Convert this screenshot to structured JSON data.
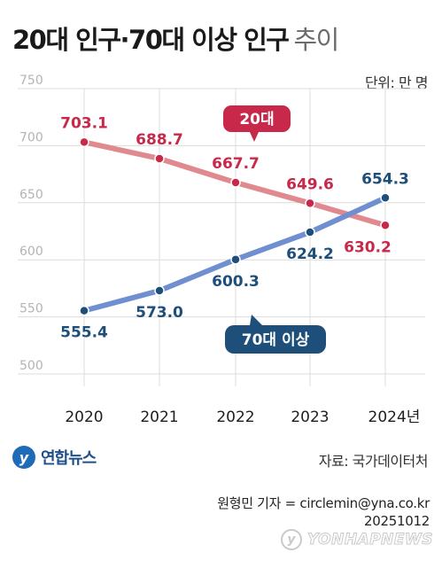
{
  "header": {
    "title": "20대 인구·70대 이상 인구",
    "subtitle": "추이",
    "unit": "단위: 만 명"
  },
  "chart_data": {
    "type": "line",
    "categories": [
      "2020",
      "2021",
      "2022",
      "2023",
      "2024년"
    ],
    "ylim": [
      500,
      750
    ],
    "yticks": [
      "750",
      "700",
      "650",
      "600",
      "550",
      "500"
    ],
    "grid": true,
    "series": [
      {
        "name": "20대",
        "values": [
          703.1,
          688.7,
          667.7,
          649.6,
          630.2
        ],
        "labels": [
          "703.1",
          "688.7",
          "667.7",
          "649.6",
          "630.2"
        ],
        "color": "#e08a8f",
        "label_color": "#c8294a"
      },
      {
        "name": "70대 이상",
        "values": [
          555.4,
          573.0,
          600.3,
          624.2,
          654.3
        ],
        "labels": [
          "555.4",
          "573.0",
          "600.3",
          "624.2",
          "654.3"
        ],
        "color": "#6f8fd0",
        "label_color": "#1e4f7a"
      }
    ]
  },
  "footer": {
    "logo": "연합뉴스",
    "source": "자료: 국가데이터처",
    "credit": "원형민 기자 = circlemin@yna.co.kr",
    "date": "20251012",
    "watermark": "YONHAPNEWS"
  },
  "colors": {
    "series_20s_line": "#e08a8f",
    "series_20s_label": "#c8294a",
    "series_70s_line": "#6f8fd0",
    "series_70s_label": "#1e4f7a",
    "grid": "#dcdcdc",
    "tick_label": "#b4b4b4"
  }
}
